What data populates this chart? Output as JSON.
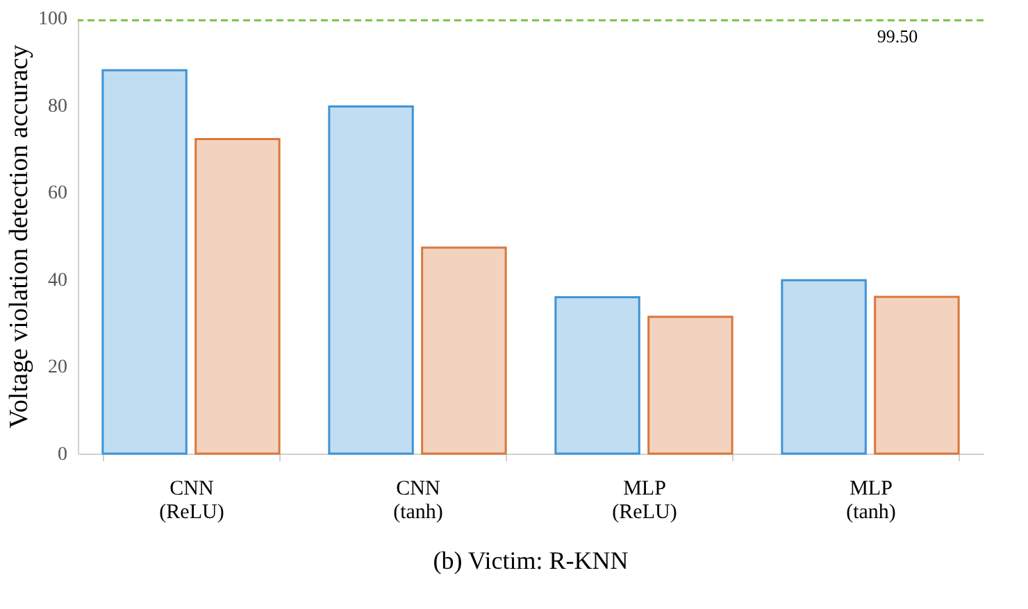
{
  "chart_data": {
    "type": "bar",
    "title": "(b) Victim: R-KNN",
    "ylabel": "Voltage violation detection accuracy",
    "categories": [
      "CNN (ReLU)",
      "CNN (tanh)",
      "MLP (ReLU)",
      "MLP (tanh)"
    ],
    "series": [
      {
        "color": "#3d94d6",
        "values": [
          88,
          79.7,
          35.9,
          39.8
        ]
      },
      {
        "color": "#d9773a",
        "values": [
          72.2,
          47.3,
          31.4,
          36
        ]
      }
    ],
    "ylim": [
      0,
      100
    ],
    "yticks": [
      0,
      20,
      40,
      60,
      80,
      100
    ],
    "grid": false,
    "ref_lines": [
      {
        "axis": "y",
        "value": 99.5,
        "label": "99.50",
        "color": "#7ac143",
        "line_style": "dashed"
      }
    ]
  }
}
